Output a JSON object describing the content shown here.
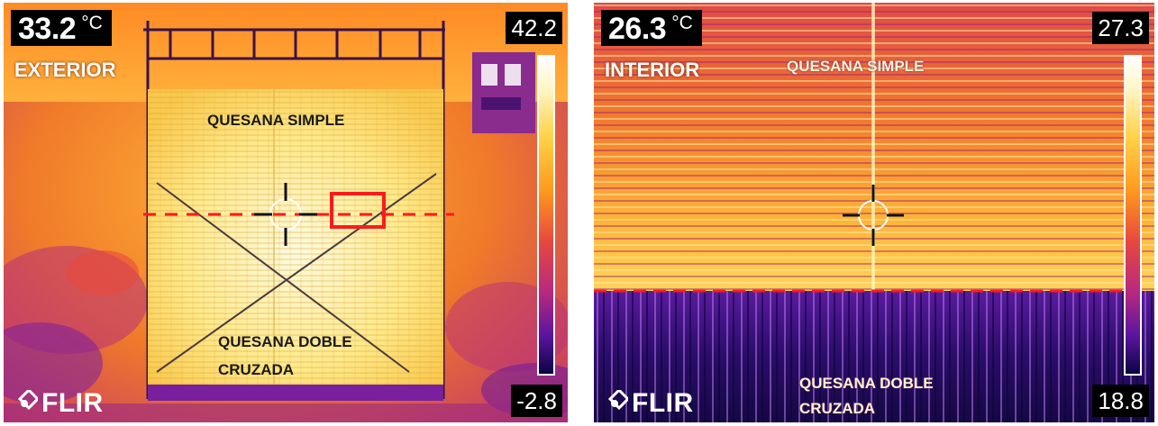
{
  "left": {
    "temperature": "33.2",
    "unit": "°C",
    "view_label": "EXTERIOR",
    "scale_max": "42.2",
    "scale_min": "-2.8",
    "label_top": "QUESANA SIMPLE",
    "label_bottom_line1": "QUESANA DOBLE",
    "label_bottom_line2": "CRUZADA",
    "logo": "FLIR"
  },
  "right": {
    "temperature": "26.3",
    "unit": "°C",
    "view_label": "INTERIOR",
    "scale_max": "27.3",
    "scale_min": "18.8",
    "label_top": "QUESANA SIMPLE",
    "label_bottom_line1": "QUESANA DOBLE",
    "label_bottom_line2": "CRUZADA",
    "logo": "FLIR"
  },
  "palette": {
    "hot": "#fff3b0",
    "warm": "#ff9a1e",
    "mid": "#e8493c",
    "cool": "#7a1f9e",
    "cold": "#140a55",
    "marker": "#ff1a1a"
  }
}
